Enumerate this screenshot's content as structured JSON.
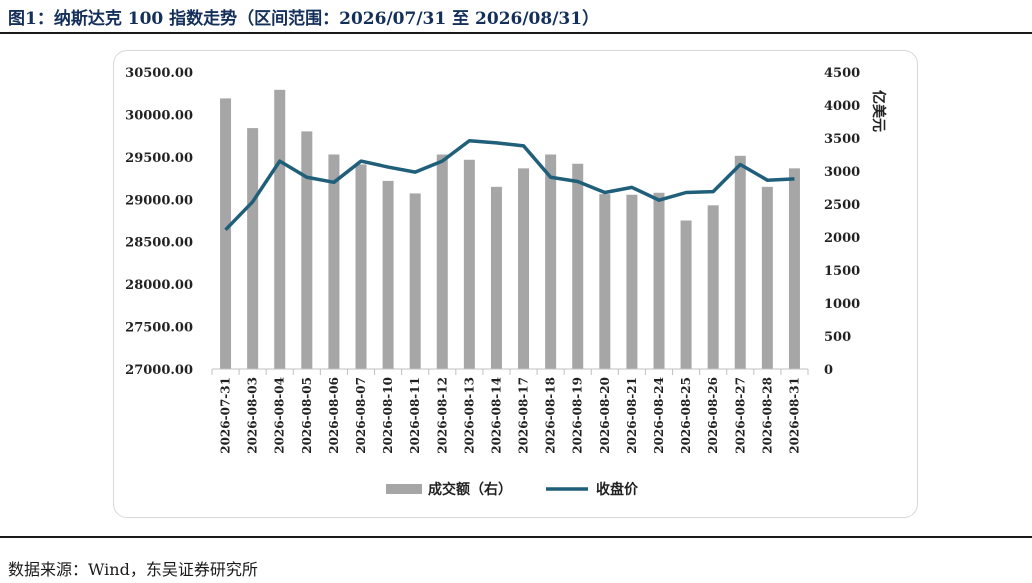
{
  "header": {
    "title": "图1：纳斯达克 100 指数走势（区间范围：2026/07/31 至 2026/08/31）"
  },
  "footer": {
    "source": "数据来源：Wind，东吴证券研究所"
  },
  "colors": {
    "bar": "#a6a6a6",
    "line": "#1f5f7a"
  },
  "chart_data": {
    "type": "bar+line",
    "categories": [
      "2026-07-31",
      "2026-08-03",
      "2026-08-04",
      "2026-08-05",
      "2026-08-06",
      "2026-08-07",
      "2026-08-10",
      "2026-08-11",
      "2026-08-12",
      "2026-08-13",
      "2026-08-14",
      "2026-08-17",
      "2026-08-18",
      "2026-08-19",
      "2026-08-20",
      "2026-08-21",
      "2026-08-24",
      "2026-08-25",
      "2026-08-26",
      "2026-08-27",
      "2026-08-28",
      "2026-08-31"
    ],
    "series": [
      {
        "name": "成交额（右）",
        "type": "bar",
        "axis": "right",
        "values": [
          4100,
          3650,
          4230,
          3600,
          3250,
          3100,
          2850,
          2660,
          3250,
          3170,
          2760,
          3040,
          3250,
          3110,
          2650,
          2640,
          2670,
          2250,
          2480,
          3230,
          2760,
          3040
        ]
      },
      {
        "name": "收盘价",
        "type": "line",
        "axis": "left",
        "values": [
          28640,
          28970,
          29450,
          29260,
          29200,
          29450,
          29380,
          29320,
          29450,
          29690,
          29665,
          29630,
          29260,
          29210,
          29080,
          29140,
          28990,
          29080,
          29090,
          29410,
          29225,
          29240
        ]
      }
    ],
    "y_left": {
      "min": 27000,
      "max": 30500,
      "step": 500,
      "ticks": [
        "27000.00",
        "27500.00",
        "28000.00",
        "28500.00",
        "29000.00",
        "29500.00",
        "30000.00",
        "30500.00"
      ]
    },
    "y_right": {
      "min": 0,
      "max": 4500,
      "step": 500,
      "label": "亿美元",
      "ticks": [
        "0",
        "500",
        "1000",
        "1500",
        "2000",
        "2500",
        "3000",
        "3500",
        "4000",
        "4500"
      ]
    },
    "legend_position": "bottom",
    "grid": false
  }
}
